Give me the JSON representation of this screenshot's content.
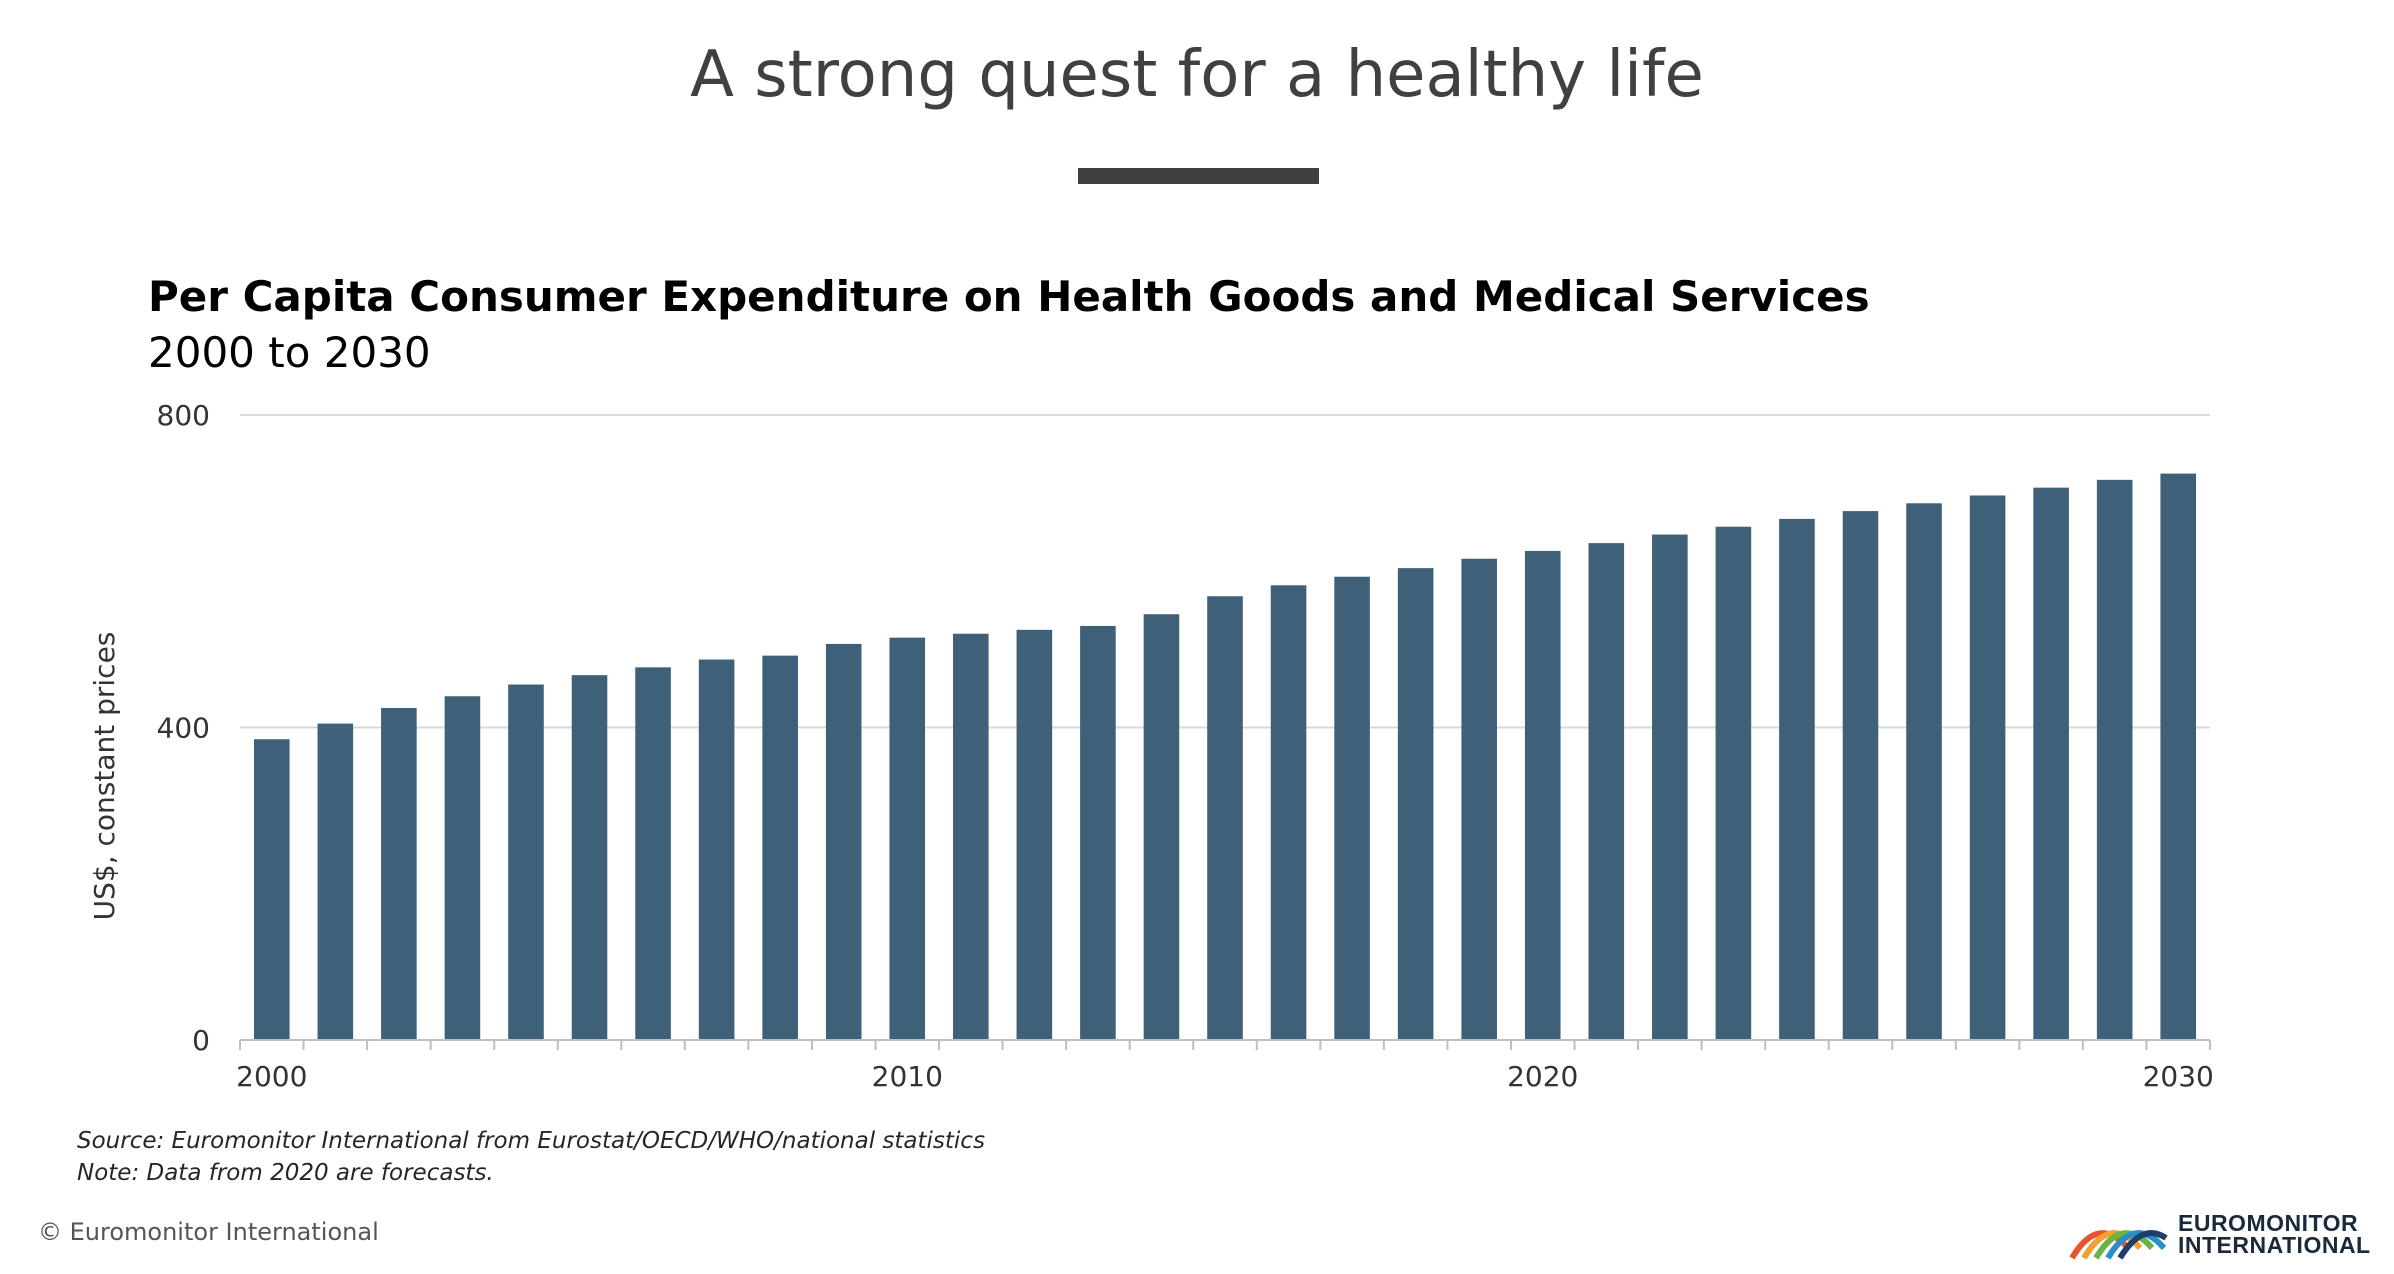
{
  "header": {
    "title": "A strong quest for a healthy life"
  },
  "chart_data": {
    "type": "bar",
    "title": "Per Capita Consumer Expenditure on Health Goods and Medical Services",
    "subtitle": "2000 to 2030",
    "xlabel": "",
    "ylabel": "US$, constant prices",
    "ylim": [
      0,
      800
    ],
    "yticks": [
      "0",
      "400",
      "800"
    ],
    "xtick_labels": [
      "2000",
      "2010",
      "2020",
      "2030"
    ],
    "categories": [
      2000,
      2001,
      2002,
      2003,
      2004,
      2005,
      2006,
      2007,
      2008,
      2009,
      2010,
      2011,
      2012,
      2013,
      2014,
      2015,
      2016,
      2017,
      2018,
      2019,
      2020,
      2021,
      2022,
      2023,
      2024,
      2025,
      2026,
      2027,
      2028,
      2029,
      2030
    ],
    "values": [
      385,
      405,
      425,
      440,
      455,
      467,
      477,
      487,
      492,
      507,
      515,
      520,
      525,
      530,
      545,
      568,
      582,
      593,
      604,
      616,
      626,
      636,
      647,
      657,
      667,
      677,
      687,
      697,
      707,
      717,
      725
    ],
    "bar_color": "#3f6079",
    "grid": true,
    "legend": "none"
  },
  "footer": {
    "source": "Source: Euromonitor International from Eurostat/OECD/WHO/national statistics",
    "note": "Note: Data from 2020 are forecasts.",
    "copyright": "© Euromonitor International",
    "logo_line1": "EUROMONITOR",
    "logo_line2": "INTERNATIONAL"
  }
}
